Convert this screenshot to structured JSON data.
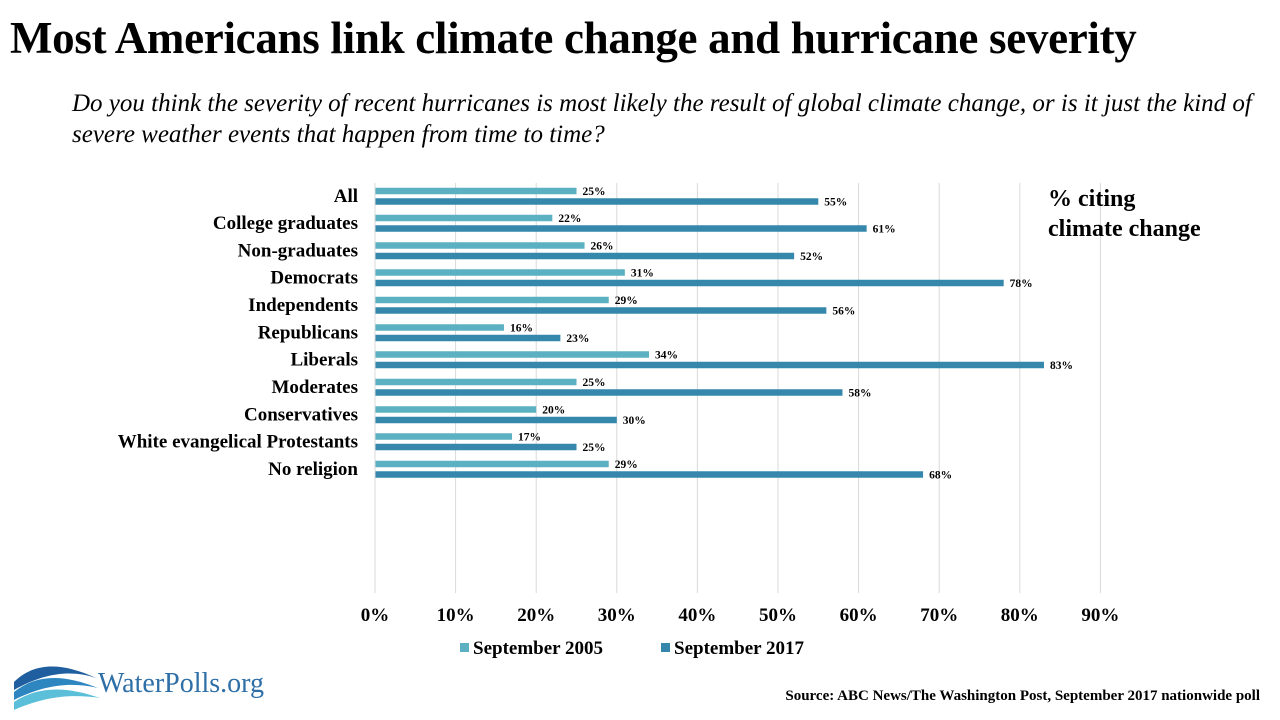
{
  "title": "Most Americans link climate change and hurricane severity",
  "subtitle": "Do you think the severity of recent hurricanes is most likely the result of global climate change, or is it just the kind of severe weather events that happen from time to time?",
  "annotation": [
    "% citing",
    "climate change"
  ],
  "logo_text": "WaterPolls.org",
  "source": "Source: ABC News/The Washington Post, September 2017 nationwide poll",
  "colors": {
    "september_2005": "#5bb1c2",
    "september_2017": "#3588ac",
    "grid": "#d9d9d9"
  },
  "chart_data": {
    "type": "bar",
    "orientation": "horizontal",
    "categories": [
      "All",
      "College graduates",
      "Non-graduates",
      "Democrats",
      "Independents",
      "Republicans",
      "Liberals",
      "Moderates",
      "Conservatives",
      "White evangelical Protestants",
      "No religion"
    ],
    "groups": [
      [
        "All"
      ],
      [
        "College graduates",
        "Non-graduates"
      ],
      [
        "Democrats",
        "Independents",
        "Republicans"
      ],
      [
        "Liberals",
        "Moderates",
        "Conservatives"
      ],
      [
        "White evangelical Protestants",
        "No religion"
      ]
    ],
    "series": [
      {
        "name": "September 2005",
        "values": [
          25,
          22,
          26,
          31,
          29,
          16,
          34,
          25,
          20,
          17,
          29
        ]
      },
      {
        "name": "September 2017",
        "values": [
          55,
          61,
          52,
          78,
          56,
          23,
          83,
          58,
          30,
          25,
          68
        ]
      }
    ],
    "data_labels": [
      [
        "25%",
        "22%",
        "26%",
        "31%",
        "29%",
        "16%",
        "34%",
        "25%",
        "20%",
        "17%",
        "29%"
      ],
      [
        "55%",
        "61%",
        "52%",
        "78%",
        "56%",
        "23%",
        "83%",
        "58%",
        "30%",
        "25%",
        "68%"
      ]
    ],
    "xticks": [
      "0%",
      "10%",
      "20%",
      "30%",
      "40%",
      "50%",
      "60%",
      "70%",
      "80%",
      "90%"
    ],
    "xlim": [
      0,
      90
    ],
    "grid": true,
    "legend": "bottom"
  }
}
